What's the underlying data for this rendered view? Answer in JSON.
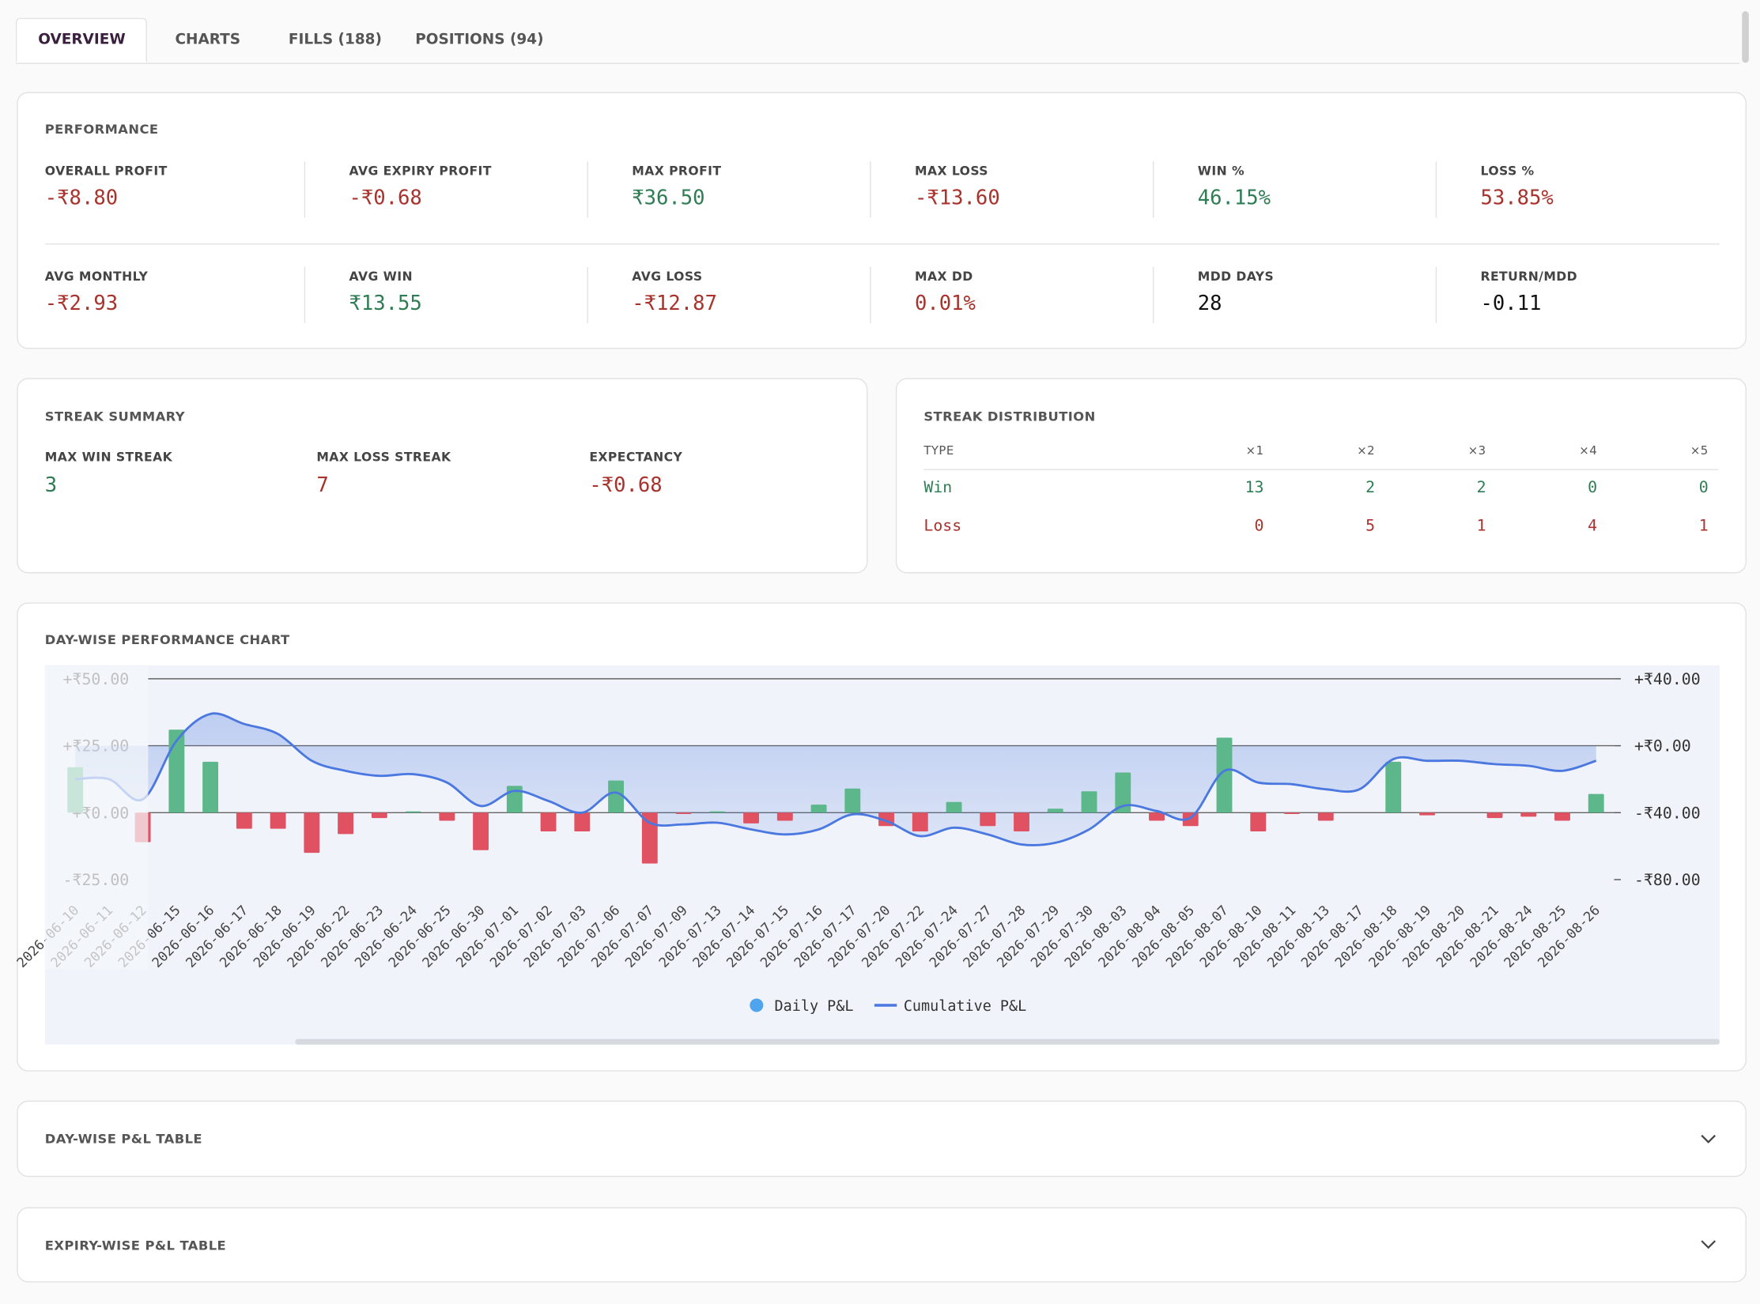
{
  "tabs": [
    {
      "label": "OVERVIEW",
      "active": true
    },
    {
      "label": "CHARTS",
      "active": false
    },
    {
      "label": "FILLS (188)",
      "active": false
    },
    {
      "label": "POSITIONS (94)",
      "active": false
    }
  ],
  "performance": {
    "title": "PERFORMANCE",
    "metrics": [
      {
        "label": "OVERALL PROFIT",
        "value": "-₹8.80",
        "color": "#a8322c"
      },
      {
        "label": "AVG EXPIRY PROFIT",
        "value": "-₹0.68",
        "color": "#a8322c"
      },
      {
        "label": "MAX PROFIT",
        "value": "₹36.50",
        "color": "#2f7d55"
      },
      {
        "label": "MAX LOSS",
        "value": "-₹13.60",
        "color": "#a8322c"
      },
      {
        "label": "WIN %",
        "value": "46.15%",
        "color": "#2f7d55"
      },
      {
        "label": "LOSS %",
        "value": "53.85%",
        "color": "#a8322c"
      },
      {
        "label": "AVG MONTHLY",
        "value": "-₹2.93",
        "color": "#a8322c"
      },
      {
        "label": "AVG WIN",
        "value": "₹13.55",
        "color": "#2f7d55"
      },
      {
        "label": "AVG LOSS",
        "value": "-₹12.87",
        "color": "#a8322c"
      },
      {
        "label": "MAX DD",
        "value": "0.01%",
        "color": "#a8322c"
      },
      {
        "label": "MDD DAYS",
        "value": "28",
        "color": "#111111"
      },
      {
        "label": "RETURN/MDD",
        "value": "-0.11",
        "color": "#111111"
      }
    ]
  },
  "streak_summary": {
    "title": "STREAK SUMMARY",
    "items": [
      {
        "label": "MAX WIN STREAK",
        "value": "3",
        "color": "#2f7d55"
      },
      {
        "label": "MAX LOSS STREAK",
        "value": "7",
        "color": "#a8322c"
      },
      {
        "label": "EXPECTANCY",
        "value": "-₹0.68",
        "color": "#a8322c"
      }
    ]
  },
  "streak_distribution": {
    "title": "STREAK DISTRIBUTION",
    "columns": [
      "TYPE",
      "×1",
      "×2",
      "×3",
      "×4",
      "×5"
    ],
    "rows": [
      {
        "type": "Win",
        "counts": [
          13,
          2,
          2,
          0,
          0
        ],
        "color": "#2f7d55"
      },
      {
        "type": "Loss",
        "counts": [
          0,
          5,
          1,
          4,
          1
        ],
        "color": "#a8322c"
      }
    ]
  },
  "chart_data": {
    "type": "bar_line",
    "title": "DAY-WISE PERFORMANCE CHART",
    "categories": [
      "2026-06-10",
      "2026-06-11",
      "2026-06-12",
      "2026-06-15",
      "2026-06-16",
      "2026-06-17",
      "2026-06-18",
      "2026-06-19",
      "2026-06-22",
      "2026-06-23",
      "2026-06-24",
      "2026-06-25",
      "2026-06-30",
      "2026-07-01",
      "2026-07-02",
      "2026-07-03",
      "2026-07-06",
      "2026-07-07",
      "2026-07-09",
      "2026-07-13",
      "2026-07-14",
      "2026-07-15",
      "2026-07-16",
      "2026-07-17",
      "2026-07-20",
      "2026-07-22",
      "2026-07-24",
      "2026-07-27",
      "2026-07-28",
      "2026-07-29",
      "2026-07-30",
      "2026-08-03",
      "2026-08-04",
      "2026-08-05",
      "2026-08-07",
      "2026-08-10",
      "2026-08-11",
      "2026-08-13",
      "2026-08-17",
      "2026-08-18",
      "2026-08-19",
      "2026-08-20",
      "2026-08-21",
      "2026-08-24",
      "2026-08-25",
      "2026-08-26"
    ],
    "series": [
      {
        "name": "Daily P&L",
        "color": "#4ea5ee",
        "positive_color": "#5cb88a",
        "negative_color": "#e05262",
        "values": [
          17,
          0,
          -11,
          31,
          19,
          -6,
          -6,
          -15,
          -8,
          -2,
          0.5,
          -3,
          -14,
          10,
          -7,
          -7,
          12,
          -19,
          -0.5,
          0.5,
          -4,
          -3,
          3,
          9,
          -5,
          -7,
          4,
          -5,
          -7,
          1.5,
          8,
          15,
          -3,
          -5,
          28,
          -7,
          -0.5,
          -3,
          0,
          19,
          -1,
          0,
          -2,
          -1.5,
          -3,
          7
        ]
      },
      {
        "name": "Cumulative P&L",
        "color": "#4a78e0",
        "axis": "y2",
        "values": [
          -20,
          -20,
          -32,
          3,
          19,
          13,
          7,
          -9,
          -15,
          -18,
          -17,
          -22,
          -36,
          -27,
          -33,
          -40,
          -28,
          -46,
          -47,
          -46,
          -50,
          -53,
          -50,
          -41,
          -45,
          -54,
          -49,
          -53,
          -59,
          -58,
          -50,
          -36,
          -39,
          -43,
          -15,
          -22,
          -23,
          -26,
          -26,
          -8,
          -9,
          -9,
          -11,
          -12,
          -15,
          -9
        ]
      }
    ],
    "ylim": [
      -25,
      50
    ],
    "yticks": [
      {
        "value": -25,
        "label": "-₹25.00"
      },
      {
        "value": 0,
        "label": "+₹0.00"
      },
      {
        "value": 25,
        "label": "+₹25.00"
      },
      {
        "value": 50,
        "label": "+₹50.00"
      }
    ],
    "y2lim": [
      -80,
      40
    ],
    "y2ticks": [
      {
        "value": -80,
        "label": "-₹80.00"
      },
      {
        "value": -40,
        "label": "-₹40.00"
      },
      {
        "value": 0,
        "label": "+₹0.00"
      },
      {
        "value": 40,
        "label": "+₹40.00"
      }
    ],
    "grid": true
  },
  "sections": [
    {
      "title": "DAY-WISE P&L TABLE"
    },
    {
      "title": "EXPIRY-WISE P&L TABLE"
    }
  ]
}
